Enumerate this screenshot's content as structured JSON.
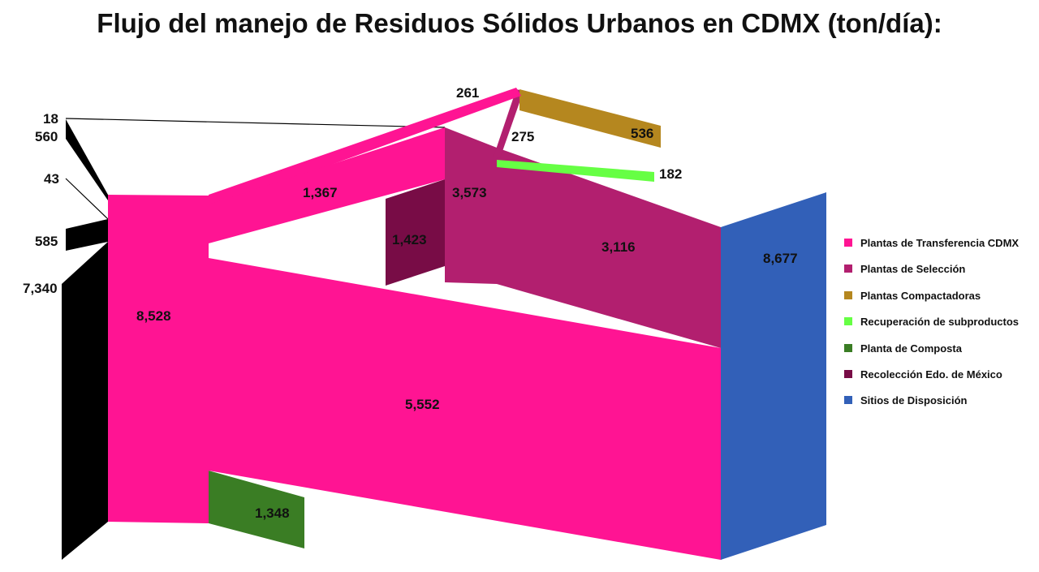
{
  "title": "Flujo del manejo de Residuos Sólidos Urbanos en CDMX (ton/día):",
  "legend": [
    {
      "label": "Plantas de Transferencia CDMX",
      "color": "#ff1493"
    },
    {
      "label": "Plantas de Selección",
      "color": "#b21f6f"
    },
    {
      "label": "Plantas Compactadoras",
      "color": "#b5871f"
    },
    {
      "label": "Recuperación de subproductos",
      "color": "#66ff44"
    },
    {
      "label": "Planta de Composta",
      "color": "#3a7d24"
    },
    {
      "label": "Recolección Edo. de México",
      "color": "#780c46"
    },
    {
      "label": "Sitios de Disposición",
      "color": "#3260b8"
    }
  ],
  "flows": {
    "input_18": "18",
    "input_560": "560",
    "input_43": "43",
    "input_585": "585",
    "input_7340": "7,340",
    "transfer_total": "8,528",
    "transfer_to_disposal": "5,552",
    "transfer_to_selection": "1,367",
    "transfer_to_compost": "1,348",
    "edomex_to_selection": "1,423",
    "selection_total": "3,573",
    "selection_to_disposal": "3,116",
    "to_compactadoras": "261",
    "compactadoras_to_recovery": "275",
    "compactadoras_total": "536",
    "recovery_total": "182",
    "disposal_total": "8,677"
  }
}
